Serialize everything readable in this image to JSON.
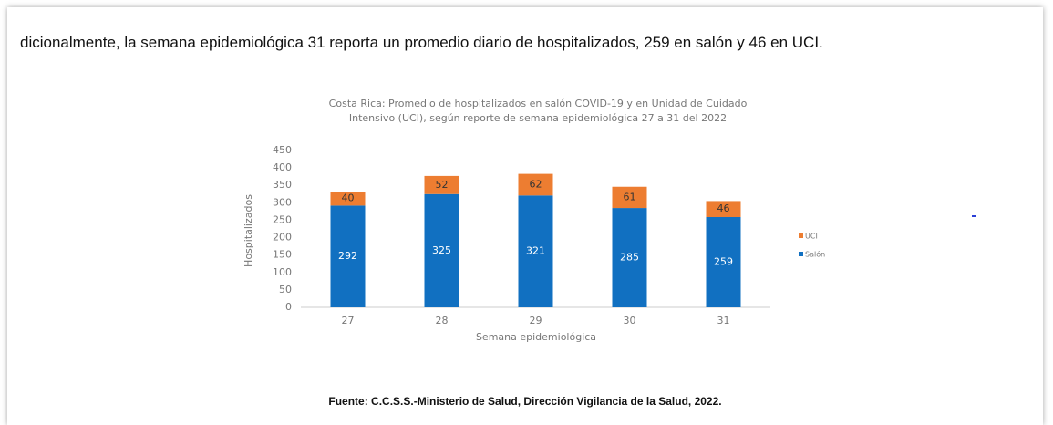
{
  "paragraph": "dicionalmente, la semana epidemiológica 31 reporta un promedio diario de hospitalizados, 259 en salón y 46 en UCI.",
  "chart_data": {
    "type": "stacked_bar",
    "title": [
      "Costa Rica: Promedio de hospitalizados en salón COVID-19 y en Unidad de Cuidado",
      "Intensivo (UCI), según reporte de semana epidemiológica 27 a 31 del 2022"
    ],
    "x_label": "Semana epidemiológica",
    "y_label": "Hospitalizados",
    "categories": [
      "27",
      "28",
      "29",
      "30",
      "31"
    ],
    "series": [
      {
        "name": "Salón",
        "color": "#1170c1",
        "values": [
          292,
          325,
          321,
          285,
          259
        ]
      },
      {
        "name": "UCI",
        "color": "#ed7d31",
        "values": [
          40,
          52,
          62,
          61,
          46
        ]
      }
    ],
    "ylim": [
      0,
      450
    ],
    "yticks": [
      0,
      50,
      100,
      150,
      200,
      250,
      300,
      350,
      400,
      450
    ],
    "grid": false,
    "legend": "right"
  },
  "source": "Fuente: C.C.S.S.-Ministerio de Salud, Dirección Vigilancia de la Salud, 2022."
}
